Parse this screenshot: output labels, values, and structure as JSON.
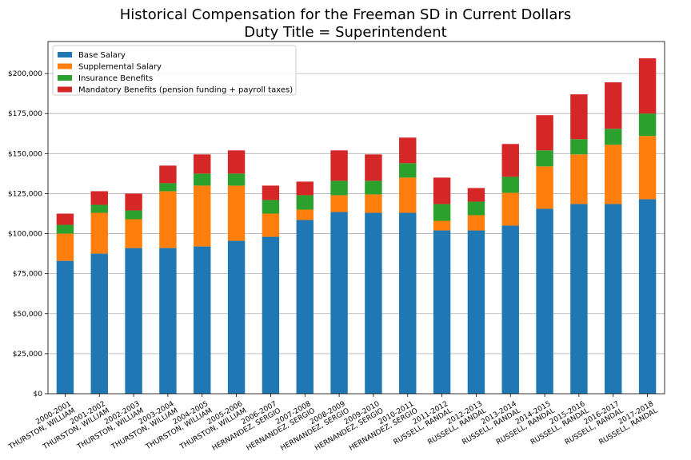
{
  "chart_data": {
    "type": "bar",
    "stacked": true,
    "title": "Historical Compensation for the Freeman SD in Current Dollars",
    "subtitle": "Duty Title = Superintendent",
    "xlabel": "",
    "ylabel": "",
    "ylim": [
      0,
      220000
    ],
    "yticks": [
      0,
      25000,
      50000,
      75000,
      100000,
      125000,
      150000,
      175000,
      200000
    ],
    "ytick_labels": [
      "$0",
      "$25,000",
      "$50,000",
      "$75,000",
      "$100,000",
      "$125,000",
      "$150,000",
      "$175,000",
      "$200,000"
    ],
    "grid": "horizontal",
    "legend_position": "top-left",
    "categories": [
      [
        "2000-2001",
        "THURSTON, WILLIAM"
      ],
      [
        "2001-2002",
        "THURSTON, WILLIAM"
      ],
      [
        "2002-2003",
        "THURSTON, WILLIAM"
      ],
      [
        "2003-2004",
        "THURSTON, WILLIAM"
      ],
      [
        "2004-2005",
        "THURSTON, WILLIAM"
      ],
      [
        "2005-2006",
        "THURSTON, WILLIAM"
      ],
      [
        "2006-2007",
        "HERNANDEZ, SERGIO"
      ],
      [
        "2007-2008",
        "HERNANDEZ, SERGIO"
      ],
      [
        "2008-2009",
        "HERNANDEZ, SERGIO"
      ],
      [
        "2009-2010",
        "HERNANDEZ, SERGIO"
      ],
      [
        "2010-2011",
        "HERNANDEZ, SERGIO"
      ],
      [
        "2011-2012",
        "RUSSELL, RANDAL"
      ],
      [
        "2012-2013",
        "RUSSELL, RANDAL"
      ],
      [
        "2013-2014",
        "RUSSELL, RANDAL"
      ],
      [
        "2014-2015",
        "RUSSELL, RANDAL"
      ],
      [
        "2015-2016",
        "RUSSELL, RANDAL"
      ],
      [
        "2016-2017",
        "RUSSELL, RANDAL"
      ],
      [
        "2017-2018",
        "RUSSELL, RANDAL"
      ]
    ],
    "series": [
      {
        "name": "Base Salary",
        "color": "#1f77b4",
        "values": [
          83000,
          87500,
          91000,
          91000,
          92000,
          95500,
          98000,
          108500,
          113500,
          113000,
          113000,
          102000,
          102000,
          105000,
          115500,
          118500,
          118500,
          121500
        ]
      },
      {
        "name": "Supplemental Salary",
        "color": "#ff7f0e",
        "values": [
          17000,
          25500,
          18000,
          35500,
          38000,
          34500,
          14500,
          6500,
          10500,
          11500,
          22000,
          6000,
          9500,
          20500,
          26500,
          31000,
          37000,
          39500
        ]
      },
      {
        "name": "Insurance Benefits",
        "color": "#2ca02c",
        "values": [
          5500,
          5000,
          5500,
          5000,
          7500,
          7500,
          8500,
          9000,
          9000,
          8500,
          9000,
          10500,
          8500,
          10000,
          10000,
          9500,
          10000,
          14000
        ]
      },
      {
        "name": "Mandatory Benefits (pension funding + payroll taxes)",
        "color": "#d62728",
        "values": [
          7000,
          8500,
          10500,
          11000,
          12000,
          14500,
          9000,
          8500,
          19000,
          16500,
          16000,
          16500,
          8500,
          20500,
          22000,
          28000,
          29000,
          34500
        ]
      }
    ]
  }
}
